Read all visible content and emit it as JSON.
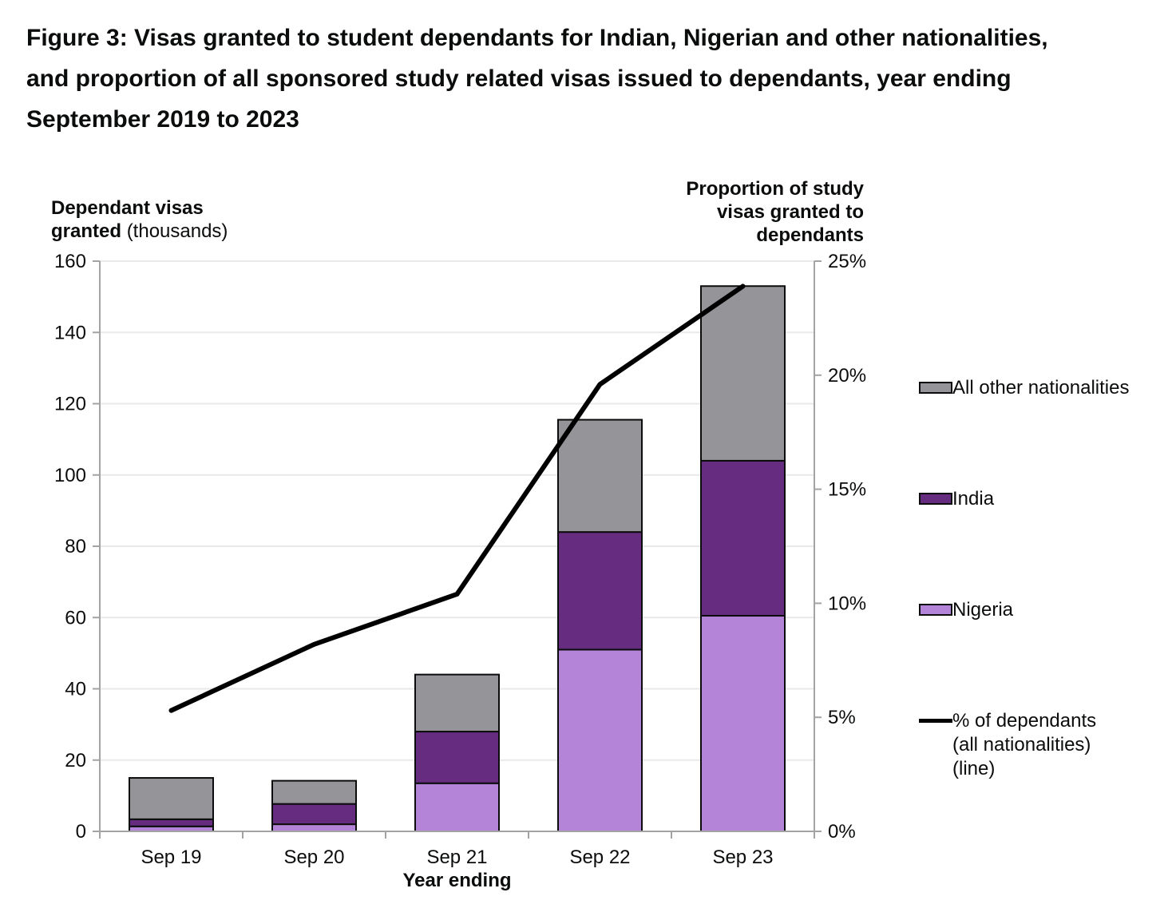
{
  "figure_title": "Figure 3: Visas granted to student dependants for Indian, Nigerian and other nationalities, and proportion of all sponsored study related visas issued to dependants, year ending September 2019 to 2023",
  "chart_data": {
    "type": "bar",
    "subtype": "stacked-bars-with-line-overlay",
    "categories": [
      "Sep 19",
      "Sep 20",
      "Sep 21",
      "Sep 22",
      "Sep 23"
    ],
    "series": [
      {
        "name": "Nigeria",
        "color": "#b384d8",
        "values": [
          1.4,
          2.0,
          13.5,
          51.0,
          60.5
        ]
      },
      {
        "name": "India",
        "color": "#652c80",
        "values": [
          2.0,
          5.7,
          14.5,
          33.0,
          43.5
        ]
      },
      {
        "name": "All other nationalities",
        "color": "#949499",
        "values": [
          11.6,
          6.5,
          16.0,
          31.5,
          49.0
        ]
      }
    ],
    "stack_totals": [
      15.0,
      14.2,
      44.0,
      115.5,
      153.0
    ],
    "line_series": {
      "name": "% of dependants (all nationalities) (line)",
      "color": "#000000",
      "axis": "right",
      "values": [
        5.3,
        8.2,
        10.4,
        19.6,
        23.9
      ]
    },
    "left_axis": {
      "label_bold": "Dependant visas granted",
      "label_regular": "(thousands)",
      "min": 0,
      "max": 160,
      "step": 20
    },
    "right_axis": {
      "label": "Proportion of study visas granted to dependants",
      "min": 0,
      "max": 25,
      "step": 5,
      "suffix": "%"
    },
    "x_axis": {
      "label": "Year ending"
    },
    "grid": true,
    "legend_position": "right"
  },
  "legend": {
    "items": [
      {
        "label": "All other nationalities",
        "color": "#949499",
        "type": "swatch"
      },
      {
        "label": "India",
        "color": "#652c80",
        "type": "swatch"
      },
      {
        "label": "Nigeria",
        "color": "#b384d8",
        "type": "swatch"
      },
      {
        "label": "% of dependants (all nationalities) (line)",
        "color": "#000000",
        "type": "line"
      }
    ]
  },
  "colors": {
    "bar_border": "#0b0c0c",
    "axis_line": "#a3a3a3",
    "gridline": "#e9e9e9",
    "text": "#0b0c0c",
    "background": "#ffffff"
  }
}
